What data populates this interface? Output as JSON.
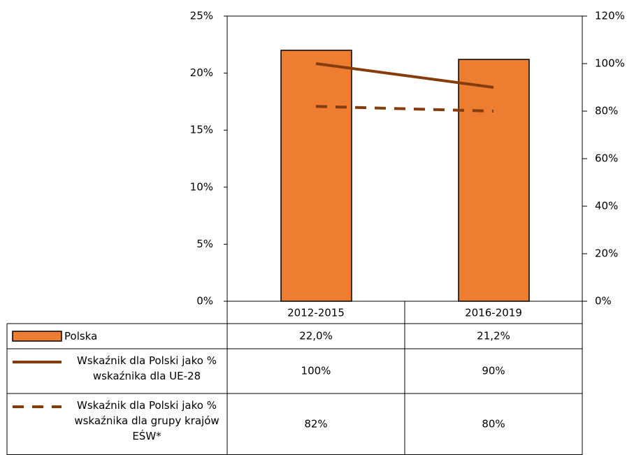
{
  "chart_data": {
    "type": "bar",
    "categories": [
      "2012-2015",
      "2016-2019"
    ],
    "series": [
      {
        "name": "Polska",
        "type": "bar",
        "color": "#ed7d31",
        "values": [
          22.0,
          21.2
        ],
        "value_labels": [
          "22,0%",
          "21,2%"
        ]
      },
      {
        "name": "Wskaźnik dla Polski jako % wskaźnika dla UE-28",
        "type": "line",
        "axis": "y2",
        "color": "#843c0c",
        "values": [
          100,
          90
        ],
        "value_labels": [
          "100%",
          "90%"
        ]
      },
      {
        "name": "Wskaźnik dla Polski jako % wskaźnika dla grupy krajów EŚW*",
        "type": "line",
        "dash": true,
        "axis": "y2",
        "color": "#843c0c",
        "values": [
          82,
          80
        ],
        "value_labels": [
          "82%",
          "80%"
        ]
      }
    ],
    "ylim": [
      0,
      25
    ],
    "yticks": [
      {
        "value": 0,
        "label": "0%"
      },
      {
        "value": 5,
        "label": "5%"
      },
      {
        "value": 10,
        "label": "10%"
      },
      {
        "value": 15,
        "label": "15%"
      },
      {
        "value": 20,
        "label": "20%"
      },
      {
        "value": 25,
        "label": "25%"
      }
    ],
    "y2lim": [
      0,
      120
    ],
    "y2ticks": [
      {
        "value": 0,
        "label": "0%"
      },
      {
        "value": 20,
        "label": "20%"
      },
      {
        "value": 40,
        "label": "40%"
      },
      {
        "value": 60,
        "label": "60%"
      },
      {
        "value": 80,
        "label": "80%"
      },
      {
        "value": 100,
        "label": "100%"
      },
      {
        "value": 120,
        "label": "120%"
      }
    ]
  }
}
